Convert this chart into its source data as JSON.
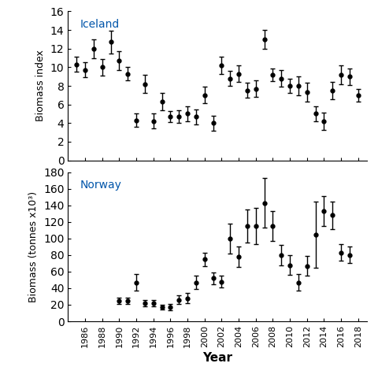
{
  "iceland_years": [
    1985,
    1986,
    1987,
    1988,
    1989,
    1990,
    1991,
    1992,
    1993,
    1994,
    1995,
    1996,
    1997,
    1998,
    1999,
    2000,
    2001,
    2002,
    2003,
    2004,
    2005,
    2006,
    2007,
    2008,
    2009,
    2010,
    2011,
    2012,
    2013,
    2014,
    2015,
    2016,
    2017,
    2018
  ],
  "iceland_values": [
    10.3,
    9.7,
    12.0,
    10.0,
    12.7,
    10.7,
    9.3,
    4.3,
    8.2,
    4.2,
    6.3,
    4.7,
    4.7,
    5.0,
    4.7,
    7.0,
    4.0,
    10.2,
    8.8,
    9.3,
    7.5,
    7.7,
    13.0,
    9.2,
    8.8,
    8.0,
    8.0,
    7.3,
    5.0,
    4.2,
    7.5,
    9.2,
    9.0,
    7.0
  ],
  "iceland_yerr": [
    0.8,
    0.8,
    1.0,
    0.9,
    1.2,
    1.0,
    0.7,
    0.7,
    1.0,
    0.8,
    0.9,
    0.6,
    0.7,
    0.8,
    0.8,
    0.9,
    0.8,
    0.9,
    0.8,
    0.9,
    0.8,
    0.9,
    1.0,
    0.7,
    0.9,
    0.8,
    1.0,
    1.0,
    0.8,
    0.9,
    0.9,
    1.0,
    0.9,
    0.7
  ],
  "norway_years": [
    1990,
    1991,
    1992,
    1993,
    1994,
    1995,
    1996,
    1997,
    1998,
    1999,
    2000,
    2001,
    2002,
    2003,
    2004,
    2005,
    2006,
    2007,
    2008,
    2009,
    2010,
    2011,
    2012,
    2013,
    2014,
    2015,
    2016,
    2017
  ],
  "norway_values": [
    25,
    25,
    47,
    22,
    22,
    17,
    17,
    26,
    28,
    47,
    75,
    52,
    48,
    100,
    78,
    115,
    115,
    143,
    115,
    80,
    68,
    47,
    67,
    105,
    133,
    128,
    83,
    80
  ],
  "norway_yerr": [
    4,
    4,
    10,
    4,
    4,
    3,
    4,
    5,
    6,
    8,
    8,
    7,
    7,
    18,
    12,
    20,
    22,
    30,
    18,
    12,
    12,
    10,
    12,
    40,
    18,
    17,
    10,
    10
  ],
  "iceland_ylabel": "Biomass index",
  "norway_ylabel": "Biomass (tonnes x10³)",
  "xlabel": "Year",
  "iceland_label": "Iceland",
  "norway_label": "Norway",
  "iceland_ylim": [
    0,
    16
  ],
  "norway_ylim": [
    0,
    180
  ],
  "line_color": "#000000",
  "label_color": "#0055AA",
  "marker": "o",
  "markersize": 3.5,
  "linewidth": 1.2,
  "capsize": 2.5,
  "elinewidth": 1.0
}
